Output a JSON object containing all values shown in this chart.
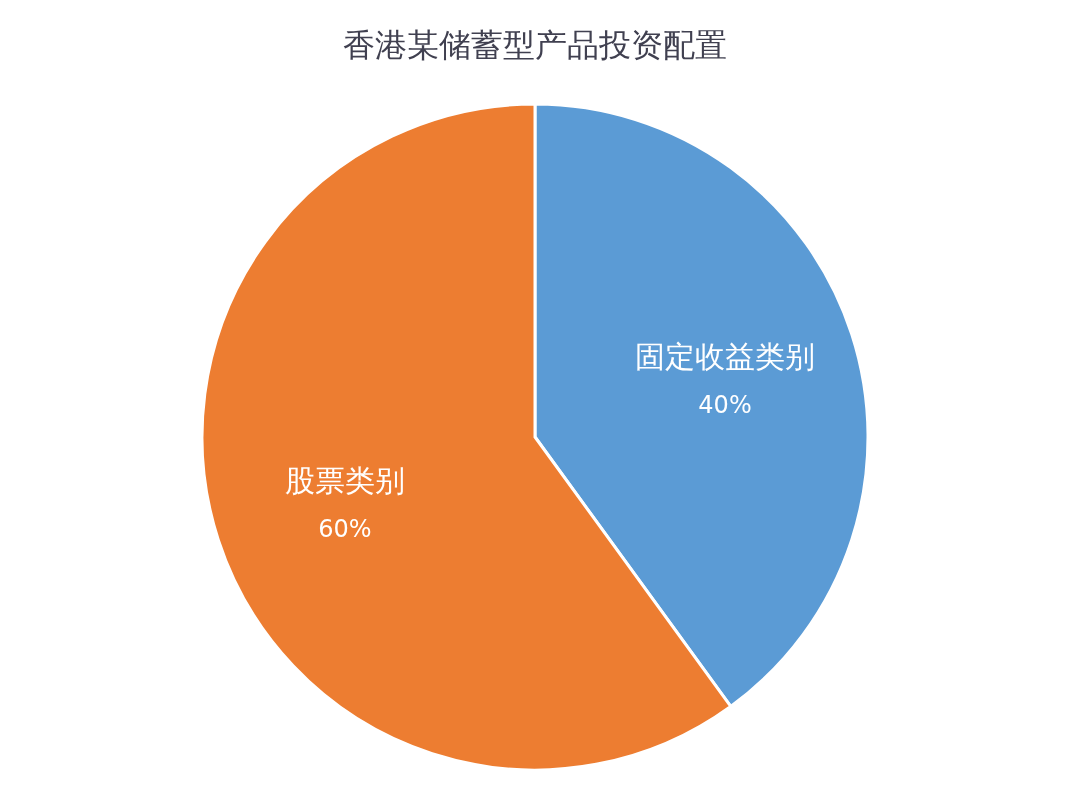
{
  "chart_data": {
    "type": "pie",
    "title": "香港某储蓄型产品投资配置",
    "categories": [
      "固定收益类别",
      "股票类别"
    ],
    "values": [
      40,
      60
    ],
    "colors": [
      "#5b9bd5",
      "#ed7d31"
    ],
    "value_labels": [
      "40%",
      "60%"
    ]
  }
}
